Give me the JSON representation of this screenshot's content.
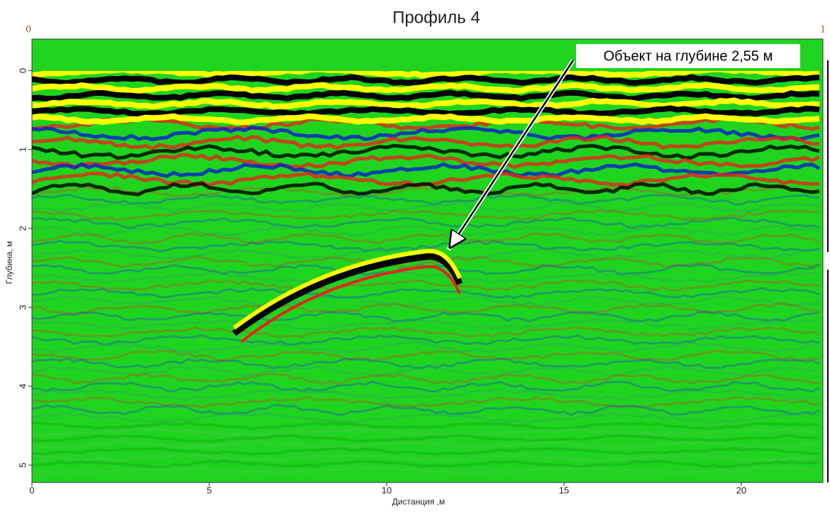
{
  "chart_data": {
    "type": "radargram",
    "title": "Профиль 4",
    "xlabel": "Дистанция ,м",
    "ylabel": "Глубина, м",
    "annotation": "Объект на глубине 2,55 м",
    "scale_labels": [
      "0",
      "1"
    ],
    "xlim": [
      0,
      22.3
    ],
    "xticks": [
      0,
      5,
      10,
      15,
      20
    ],
    "ylim": [
      -0.4,
      5.22
    ],
    "yticks": [
      0,
      1,
      2,
      3,
      4,
      5
    ],
    "inverted_y": true
  }
}
